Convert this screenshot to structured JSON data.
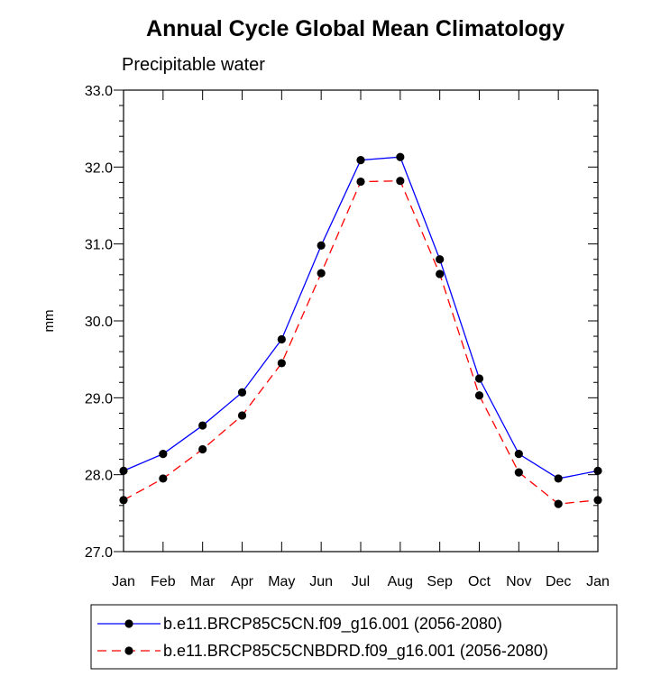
{
  "chart_data": {
    "type": "line",
    "title": "Annual Cycle Global Mean Climatology",
    "subtitle": "Precipitable water",
    "xlabel": "",
    "ylabel": "mm",
    "categories": [
      "Jan",
      "Feb",
      "Mar",
      "Apr",
      "May",
      "Jun",
      "Jul",
      "Aug",
      "Sep",
      "Oct",
      "Nov",
      "Dec",
      "Jan"
    ],
    "ylim": [
      27.0,
      33.0
    ],
    "yticks": [
      "27.0",
      "28.0",
      "29.0",
      "30.0",
      "31.0",
      "32.0",
      "33.0"
    ],
    "series": [
      {
        "name": "b.e11.BRCP85C5CN.f09_g16.001 (2056-2080)",
        "color": "#0000ff",
        "dash": "solid",
        "values": [
          28.05,
          28.27,
          28.64,
          29.07,
          29.76,
          30.98,
          32.09,
          32.13,
          30.8,
          29.25,
          28.27,
          27.95,
          28.05
        ]
      },
      {
        "name": "b.e11.BRCP85C5CNBDRD.f09_g16.001 (2056-2080)",
        "color": "#ff0000",
        "dash": "dashed",
        "values": [
          27.67,
          27.95,
          28.33,
          28.77,
          29.45,
          30.62,
          31.81,
          31.82,
          30.61,
          29.03,
          28.03,
          27.62,
          27.67
        ]
      }
    ],
    "marker_color": "#000000"
  }
}
